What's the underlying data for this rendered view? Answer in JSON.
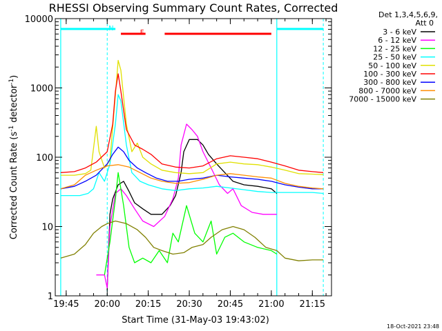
{
  "chart_data": {
    "type": "line",
    "title": "RHESSI Observing Summary Count Rates, Corrected",
    "xlabel": "Start Time (31-May-03 19:43:02)",
    "ylabel": "Corrected Count Rate (s",
    "ylabel_sup": "-1",
    "ylabel_tail": " detector",
    "ylabel_sup2": "-1",
    "ylabel_end": ")",
    "yscale": "log",
    "ylim": [
      1,
      10000
    ],
    "xlim": [
      "19:41",
      "21:22"
    ],
    "xticks": [
      "19:45",
      "20:00",
      "20:15",
      "20:30",
      "20:45",
      "21:00",
      "21:15"
    ],
    "yticks": [
      "1",
      "10",
      "100",
      "1000",
      "10000"
    ],
    "grid": false,
    "legend_position": "top-right",
    "legend_header": [
      "Det 1,3,4,5,6,9,",
      "Att 0"
    ],
    "footer_stamp": "18-Oct-2021 23:48",
    "flags": [
      {
        "label": "N",
        "color": "#00ffff",
        "intervals": [
          [
            "19:43",
            "20:03"
          ],
          [
            "21:02",
            "21:19"
          ]
        ]
      },
      {
        "label": "F",
        "color": "#ff0000",
        "intervals": [
          [
            "20:05",
            "20:14"
          ],
          [
            "20:21",
            "21:00"
          ]
        ]
      }
    ],
    "vertical_markers": {
      "color": "#00ffff",
      "solid": [
        "19:43",
        "21:02"
      ],
      "dashed": [
        "20:00",
        "21:19"
      ]
    },
    "series": [
      {
        "name": "3 - 6 keV",
        "color": "#000000",
        "points": [
          [
            "20:00",
            1.2
          ],
          [
            "20:01",
            15
          ],
          [
            "20:02",
            25
          ],
          [
            "20:04",
            40
          ],
          [
            "20:06",
            45
          ],
          [
            "20:08",
            32
          ],
          [
            "20:10",
            22
          ],
          [
            "20:13",
            18
          ],
          [
            "20:16",
            15
          ],
          [
            "20:20",
            15
          ],
          [
            "20:23",
            20
          ],
          [
            "20:25",
            28
          ],
          [
            "20:27",
            60
          ],
          [
            "20:28",
            120
          ],
          [
            "20:30",
            180
          ],
          [
            "20:33",
            180
          ],
          [
            "20:35",
            150
          ],
          [
            "20:37",
            110
          ],
          [
            "20:40",
            80
          ],
          [
            "20:43",
            60
          ],
          [
            "20:46",
            45
          ],
          [
            "20:50",
            40
          ],
          [
            "20:55",
            38
          ],
          [
            "21:00",
            35
          ],
          [
            "21:02",
            30
          ]
        ]
      },
      {
        "name": "6 - 12 keV",
        "color": "#ff00ff",
        "points": [
          [
            "19:56",
            2
          ],
          [
            "19:59",
            2
          ],
          [
            "20:00",
            1.3
          ],
          [
            "20:01",
            10
          ],
          [
            "20:03",
            30
          ],
          [
            "20:05",
            35
          ],
          [
            "20:07",
            28
          ],
          [
            "20:10",
            18
          ],
          [
            "20:13",
            12
          ],
          [
            "20:17",
            10
          ],
          [
            "20:21",
            14
          ],
          [
            "20:24",
            25
          ],
          [
            "20:26",
            50
          ],
          [
            "20:27",
            150
          ],
          [
            "20:29",
            300
          ],
          [
            "20:31",
            250
          ],
          [
            "20:33",
            200
          ],
          [
            "20:35",
            120
          ],
          [
            "20:38",
            70
          ],
          [
            "20:41",
            40
          ],
          [
            "20:44",
            30
          ],
          [
            "20:46",
            35
          ],
          [
            "20:49",
            20
          ],
          [
            "20:53",
            16
          ],
          [
            "20:57",
            15
          ],
          [
            "21:02",
            15
          ]
        ]
      },
      {
        "name": "12 - 25 keV",
        "color": "#00ff00",
        "points": [
          [
            "19:59",
            2
          ],
          [
            "20:01",
            6
          ],
          [
            "20:03",
            25
          ],
          [
            "20:04",
            60
          ],
          [
            "20:06",
            20
          ],
          [
            "20:08",
            5
          ],
          [
            "20:10",
            3
          ],
          [
            "20:13",
            3.5
          ],
          [
            "20:16",
            3
          ],
          [
            "20:19",
            4.5
          ],
          [
            "20:22",
            3
          ],
          [
            "20:24",
            8
          ],
          [
            "20:26",
            6
          ],
          [
            "20:29",
            20
          ],
          [
            "20:32",
            8
          ],
          [
            "20:35",
            6
          ],
          [
            "20:38",
            12
          ],
          [
            "20:40",
            4
          ],
          [
            "20:43",
            7
          ],
          [
            "20:46",
            8
          ],
          [
            "20:50",
            6
          ],
          [
            "20:55",
            5
          ],
          [
            "21:00",
            4.5
          ],
          [
            "21:02",
            4
          ]
        ]
      },
      {
        "name": "25 - 50 keV",
        "color": "#00ffff",
        "points": [
          [
            "19:43",
            28
          ],
          [
            "19:50",
            28
          ],
          [
            "19:53",
            30
          ],
          [
            "19:55",
            35
          ],
          [
            "19:57",
            60
          ],
          [
            "19:59",
            45
          ],
          [
            "20:01",
            80
          ],
          [
            "20:03",
            300
          ],
          [
            "20:04",
            800
          ],
          [
            "20:05",
            650
          ],
          [
            "20:07",
            150
          ],
          [
            "20:09",
            60
          ],
          [
            "20:12",
            45
          ],
          [
            "20:15",
            40
          ],
          [
            "20:20",
            35
          ],
          [
            "20:25",
            33
          ],
          [
            "20:30",
            35
          ],
          [
            "20:35",
            36
          ],
          [
            "20:40",
            38
          ],
          [
            "20:45",
            36
          ],
          [
            "20:50",
            34
          ],
          [
            "20:55",
            32
          ],
          [
            "21:00",
            31
          ],
          [
            "21:05",
            31
          ],
          [
            "21:10",
            31
          ],
          [
            "21:15",
            31
          ],
          [
            "21:19",
            30
          ]
        ]
      },
      {
        "name": "50 - 100 keV",
        "color": "#e0e000",
        "points": [
          [
            "19:43",
            55
          ],
          [
            "19:48",
            55
          ],
          [
            "19:52",
            58
          ],
          [
            "19:54",
            65
          ],
          [
            "19:56",
            280
          ],
          [
            "19:57",
            120
          ],
          [
            "19:59",
            70
          ],
          [
            "20:01",
            90
          ],
          [
            "20:03",
            800
          ],
          [
            "20:04",
            2500
          ],
          [
            "20:05",
            1800
          ],
          [
            "20:07",
            300
          ],
          [
            "20:09",
            120
          ],
          [
            "20:11",
            160
          ],
          [
            "20:13",
            100
          ],
          [
            "20:16",
            80
          ],
          [
            "20:20",
            65
          ],
          [
            "20:25",
            60
          ],
          [
            "20:30",
            58
          ],
          [
            "20:35",
            60
          ],
          [
            "20:40",
            80
          ],
          [
            "20:45",
            85
          ],
          [
            "20:50",
            80
          ],
          [
            "20:55",
            78
          ],
          [
            "21:00",
            72
          ],
          [
            "21:05",
            65
          ],
          [
            "21:10",
            58
          ],
          [
            "21:15",
            57
          ],
          [
            "21:19",
            56
          ]
        ]
      },
      {
        "name": "100 - 300 keV",
        "color": "#ff0000",
        "points": [
          [
            "19:43",
            60
          ],
          [
            "19:48",
            62
          ],
          [
            "19:52",
            70
          ],
          [
            "19:56",
            85
          ],
          [
            "20:00",
            120
          ],
          [
            "20:02",
            300
          ],
          [
            "20:03",
            900
          ],
          [
            "20:04",
            1600
          ],
          [
            "20:05",
            900
          ],
          [
            "20:07",
            250
          ],
          [
            "20:10",
            150
          ],
          [
            "20:13",
            130
          ],
          [
            "20:16",
            110
          ],
          [
            "20:20",
            80
          ],
          [
            "20:25",
            72
          ],
          [
            "20:30",
            70
          ],
          [
            "20:35",
            75
          ],
          [
            "20:40",
            95
          ],
          [
            "20:45",
            105
          ],
          [
            "20:50",
            100
          ],
          [
            "20:55",
            95
          ],
          [
            "21:00",
            85
          ],
          [
            "21:05",
            75
          ],
          [
            "21:10",
            65
          ],
          [
            "21:15",
            62
          ],
          [
            "21:19",
            60
          ]
        ]
      },
      {
        "name": "300 - 800 keV",
        "color": "#0000ff",
        "points": [
          [
            "19:43",
            35
          ],
          [
            "19:48",
            38
          ],
          [
            "19:52",
            45
          ],
          [
            "19:56",
            55
          ],
          [
            "20:00",
            80
          ],
          [
            "20:02",
            110
          ],
          [
            "20:04",
            140
          ],
          [
            "20:06",
            120
          ],
          [
            "20:08",
            90
          ],
          [
            "20:11",
            70
          ],
          [
            "20:14",
            60
          ],
          [
            "20:18",
            50
          ],
          [
            "20:22",
            45
          ],
          [
            "20:26",
            45
          ],
          [
            "20:30",
            48
          ],
          [
            "20:35",
            50
          ],
          [
            "20:40",
            55
          ],
          [
            "20:45",
            52
          ],
          [
            "20:50",
            50
          ],
          [
            "20:55",
            48
          ],
          [
            "21:00",
            45
          ],
          [
            "21:05",
            40
          ],
          [
            "21:10",
            37
          ],
          [
            "21:15",
            35
          ],
          [
            "21:19",
            35
          ]
        ]
      },
      {
        "name": "800 - 7000 keV",
        "color": "#ff8c00",
        "points": [
          [
            "19:43",
            35
          ],
          [
            "19:48",
            40
          ],
          [
            "19:52",
            55
          ],
          [
            "19:56",
            65
          ],
          [
            "20:00",
            75
          ],
          [
            "20:04",
            78
          ],
          [
            "20:08",
            72
          ],
          [
            "20:12",
            60
          ],
          [
            "20:16",
            50
          ],
          [
            "20:20",
            45
          ],
          [
            "20:25",
            42
          ],
          [
            "20:30",
            43
          ],
          [
            "20:35",
            48
          ],
          [
            "20:40",
            55
          ],
          [
            "20:45",
            58
          ],
          [
            "20:50",
            55
          ],
          [
            "20:55",
            52
          ],
          [
            "21:00",
            50
          ],
          [
            "21:05",
            42
          ],
          [
            "21:10",
            38
          ],
          [
            "21:15",
            36
          ],
          [
            "21:19",
            35
          ]
        ]
      },
      {
        "name": "7000 - 15000 keV",
        "color": "#808000",
        "points": [
          [
            "19:43",
            3.5
          ],
          [
            "19:48",
            4
          ],
          [
            "19:52",
            5.5
          ],
          [
            "19:55",
            8
          ],
          [
            "19:58",
            10
          ],
          [
            "20:00",
            11
          ],
          [
            "20:03",
            12
          ],
          [
            "20:07",
            11
          ],
          [
            "20:11",
            9
          ],
          [
            "20:14",
            7
          ],
          [
            "20:17",
            5
          ],
          [
            "20:20",
            4.5
          ],
          [
            "20:24",
            4
          ],
          [
            "20:28",
            4.2
          ],
          [
            "20:31",
            5
          ],
          [
            "20:35",
            5.5
          ],
          [
            "20:38",
            7
          ],
          [
            "20:42",
            9
          ],
          [
            "20:46",
            10
          ],
          [
            "20:50",
            9
          ],
          [
            "20:54",
            7
          ],
          [
            "20:58",
            5
          ],
          [
            "21:02",
            4.5
          ],
          [
            "21:05",
            3.5
          ],
          [
            "21:10",
            3.2
          ],
          [
            "21:15",
            3.3
          ],
          [
            "21:19",
            3.3
          ]
        ]
      }
    ]
  }
}
